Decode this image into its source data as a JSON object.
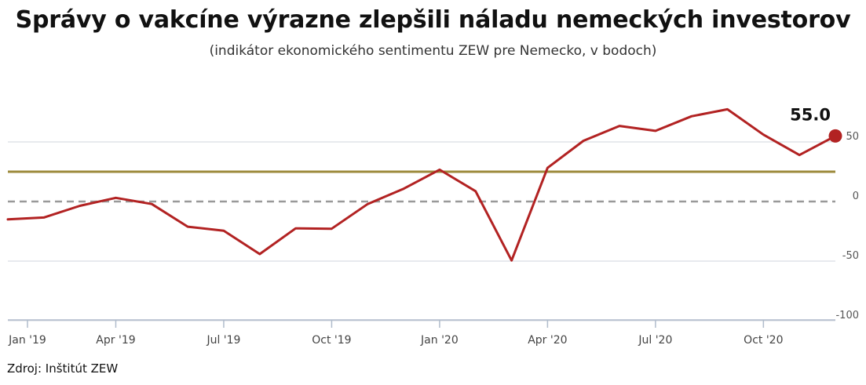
{
  "header": {
    "title": "Správy o vakcíne výrazne zlepšili náladu nemeckých investorov",
    "subtitle": "(indikátor ekonomického sentimentu ZEW pre Nemecko, v bodoch)"
  },
  "footer": {
    "source": "Zdroj: Inštitút ZEW"
  },
  "colors": {
    "series": "#b22222",
    "reference": "#9c8a3b",
    "zero_line": "#999999",
    "grid": "#d0d5dc",
    "axis": "#b0bccc"
  },
  "chart_data": {
    "type": "line",
    "title": "Správy o vakcíne výrazne zlepšili náladu nemeckých investorov",
    "subtitle": "(indikátor ekonomického sentimentu ZEW pre Nemecko, v bodoch)",
    "x": [
      "2019-01",
      "2019-02",
      "2019-03",
      "2019-04",
      "2019-05",
      "2019-06",
      "2019-07",
      "2019-08",
      "2019-09",
      "2019-10",
      "2019-11",
      "2019-12",
      "2020-01",
      "2020-02",
      "2020-03",
      "2020-04",
      "2020-05",
      "2020-06",
      "2020-07",
      "2020-08",
      "2020-09",
      "2020-10",
      "2020-11",
      "2020-12"
    ],
    "series": [
      {
        "values": [
          -15.0,
          -13.4,
          -3.6,
          3.1,
          -2.1,
          -21.1,
          -24.5,
          -44.1,
          -22.5,
          -22.8,
          -2.1,
          10.7,
          26.7,
          8.7,
          -49.5,
          28.2,
          51.0,
          63.4,
          59.3,
          71.5,
          77.4,
          56.1,
          39.0,
          55.0
        ]
      }
    ],
    "reference_lines": [
      {
        "value": 25.0,
        "style": "solid"
      },
      {
        "value": 0,
        "style": "dashed"
      }
    ],
    "last_value_label": "55.0",
    "x_tick_labels": [
      "Jan '19",
      "Apr '19",
      "Jul '19",
      "Oct '19",
      "Jan '20",
      "Apr '20",
      "Jul '20",
      "Oct '20"
    ],
    "x_tick_positions": [
      "2019-01",
      "2019-04",
      "2019-07",
      "2019-10",
      "2020-01",
      "2020-04",
      "2020-07",
      "2020-10"
    ],
    "y_ticks": [
      50,
      0,
      -50,
      -100
    ],
    "ylim": [
      -100,
      100
    ],
    "grid": true,
    "y_axis_side": "right"
  }
}
